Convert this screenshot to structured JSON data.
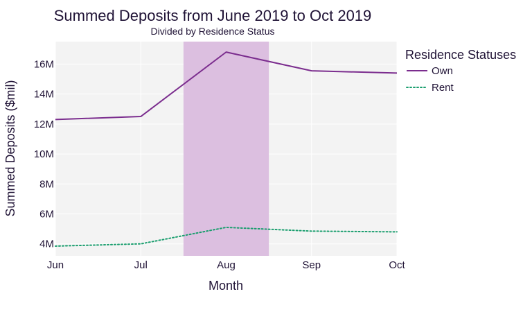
{
  "chart_data": {
    "type": "line",
    "title": "Summed Deposits from June 2019 to Oct 2019",
    "subtitle": "Divided by Residence Status",
    "xlabel": "Month",
    "ylabel": "Summed Deposits ($mil)",
    "categories": [
      "Jun",
      "Jul",
      "Aug",
      "Sep",
      "Oct"
    ],
    "series": [
      {
        "name": "Own",
        "values": [
          12.3,
          12.5,
          16.8,
          15.55,
          15.4
        ],
        "color": "#7b2d8e",
        "dash": "solid"
      },
      {
        "name": "Rent",
        "values": [
          3.85,
          4.0,
          5.1,
          4.85,
          4.8
        ],
        "color": "#1a9e6e",
        "dash": "dot"
      }
    ],
    "ylim": [
      3.2,
      17.5
    ],
    "yticks": [
      4,
      6,
      8,
      10,
      12,
      14,
      16
    ],
    "ytick_suffix": "M",
    "highlight": {
      "from": 1.5,
      "to": 2.5,
      "color": "#dcbfe0"
    },
    "legend": {
      "title": "Residence Statuses",
      "placement": "top-right"
    },
    "grid": true
  }
}
